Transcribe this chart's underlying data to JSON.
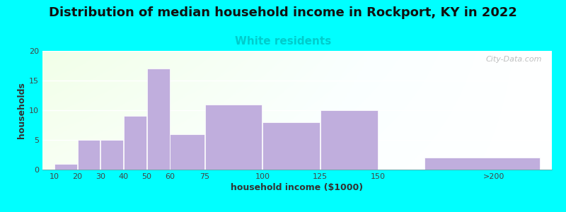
{
  "title": "Distribution of median household income in Rockport, KY in 2022",
  "subtitle": "White residents",
  "subtitle_color": "#00cccc",
  "xlabel": "household income ($1000)",
  "ylabel": "households",
  "background_color": "#00ffff",
  "bar_color": "#c0aedd",
  "bar_lefts": [
    10,
    20,
    30,
    40,
    50,
    60,
    75,
    100,
    125,
    170
  ],
  "bar_widths": [
    10,
    10,
    10,
    10,
    10,
    15,
    25,
    25,
    25,
    50
  ],
  "bar_values": [
    1,
    5,
    5,
    9,
    17,
    6,
    11,
    8,
    10,
    2
  ],
  "ylim": [
    0,
    20
  ],
  "yticks": [
    0,
    5,
    10,
    15,
    20
  ],
  "xtick_positions": [
    10,
    20,
    30,
    40,
    50,
    60,
    75,
    100,
    125,
    150,
    200
  ],
  "xtick_labels": [
    "10",
    "20",
    "30",
    "40",
    "50",
    "60",
    "75",
    "100",
    "125",
    "150",
    ">200"
  ],
  "xlim_left": 5,
  "xlim_right": 225,
  "watermark": "City-Data.com",
  "title_fontsize": 13,
  "subtitle_fontsize": 11,
  "axis_label_fontsize": 9,
  "tick_fontsize": 8
}
